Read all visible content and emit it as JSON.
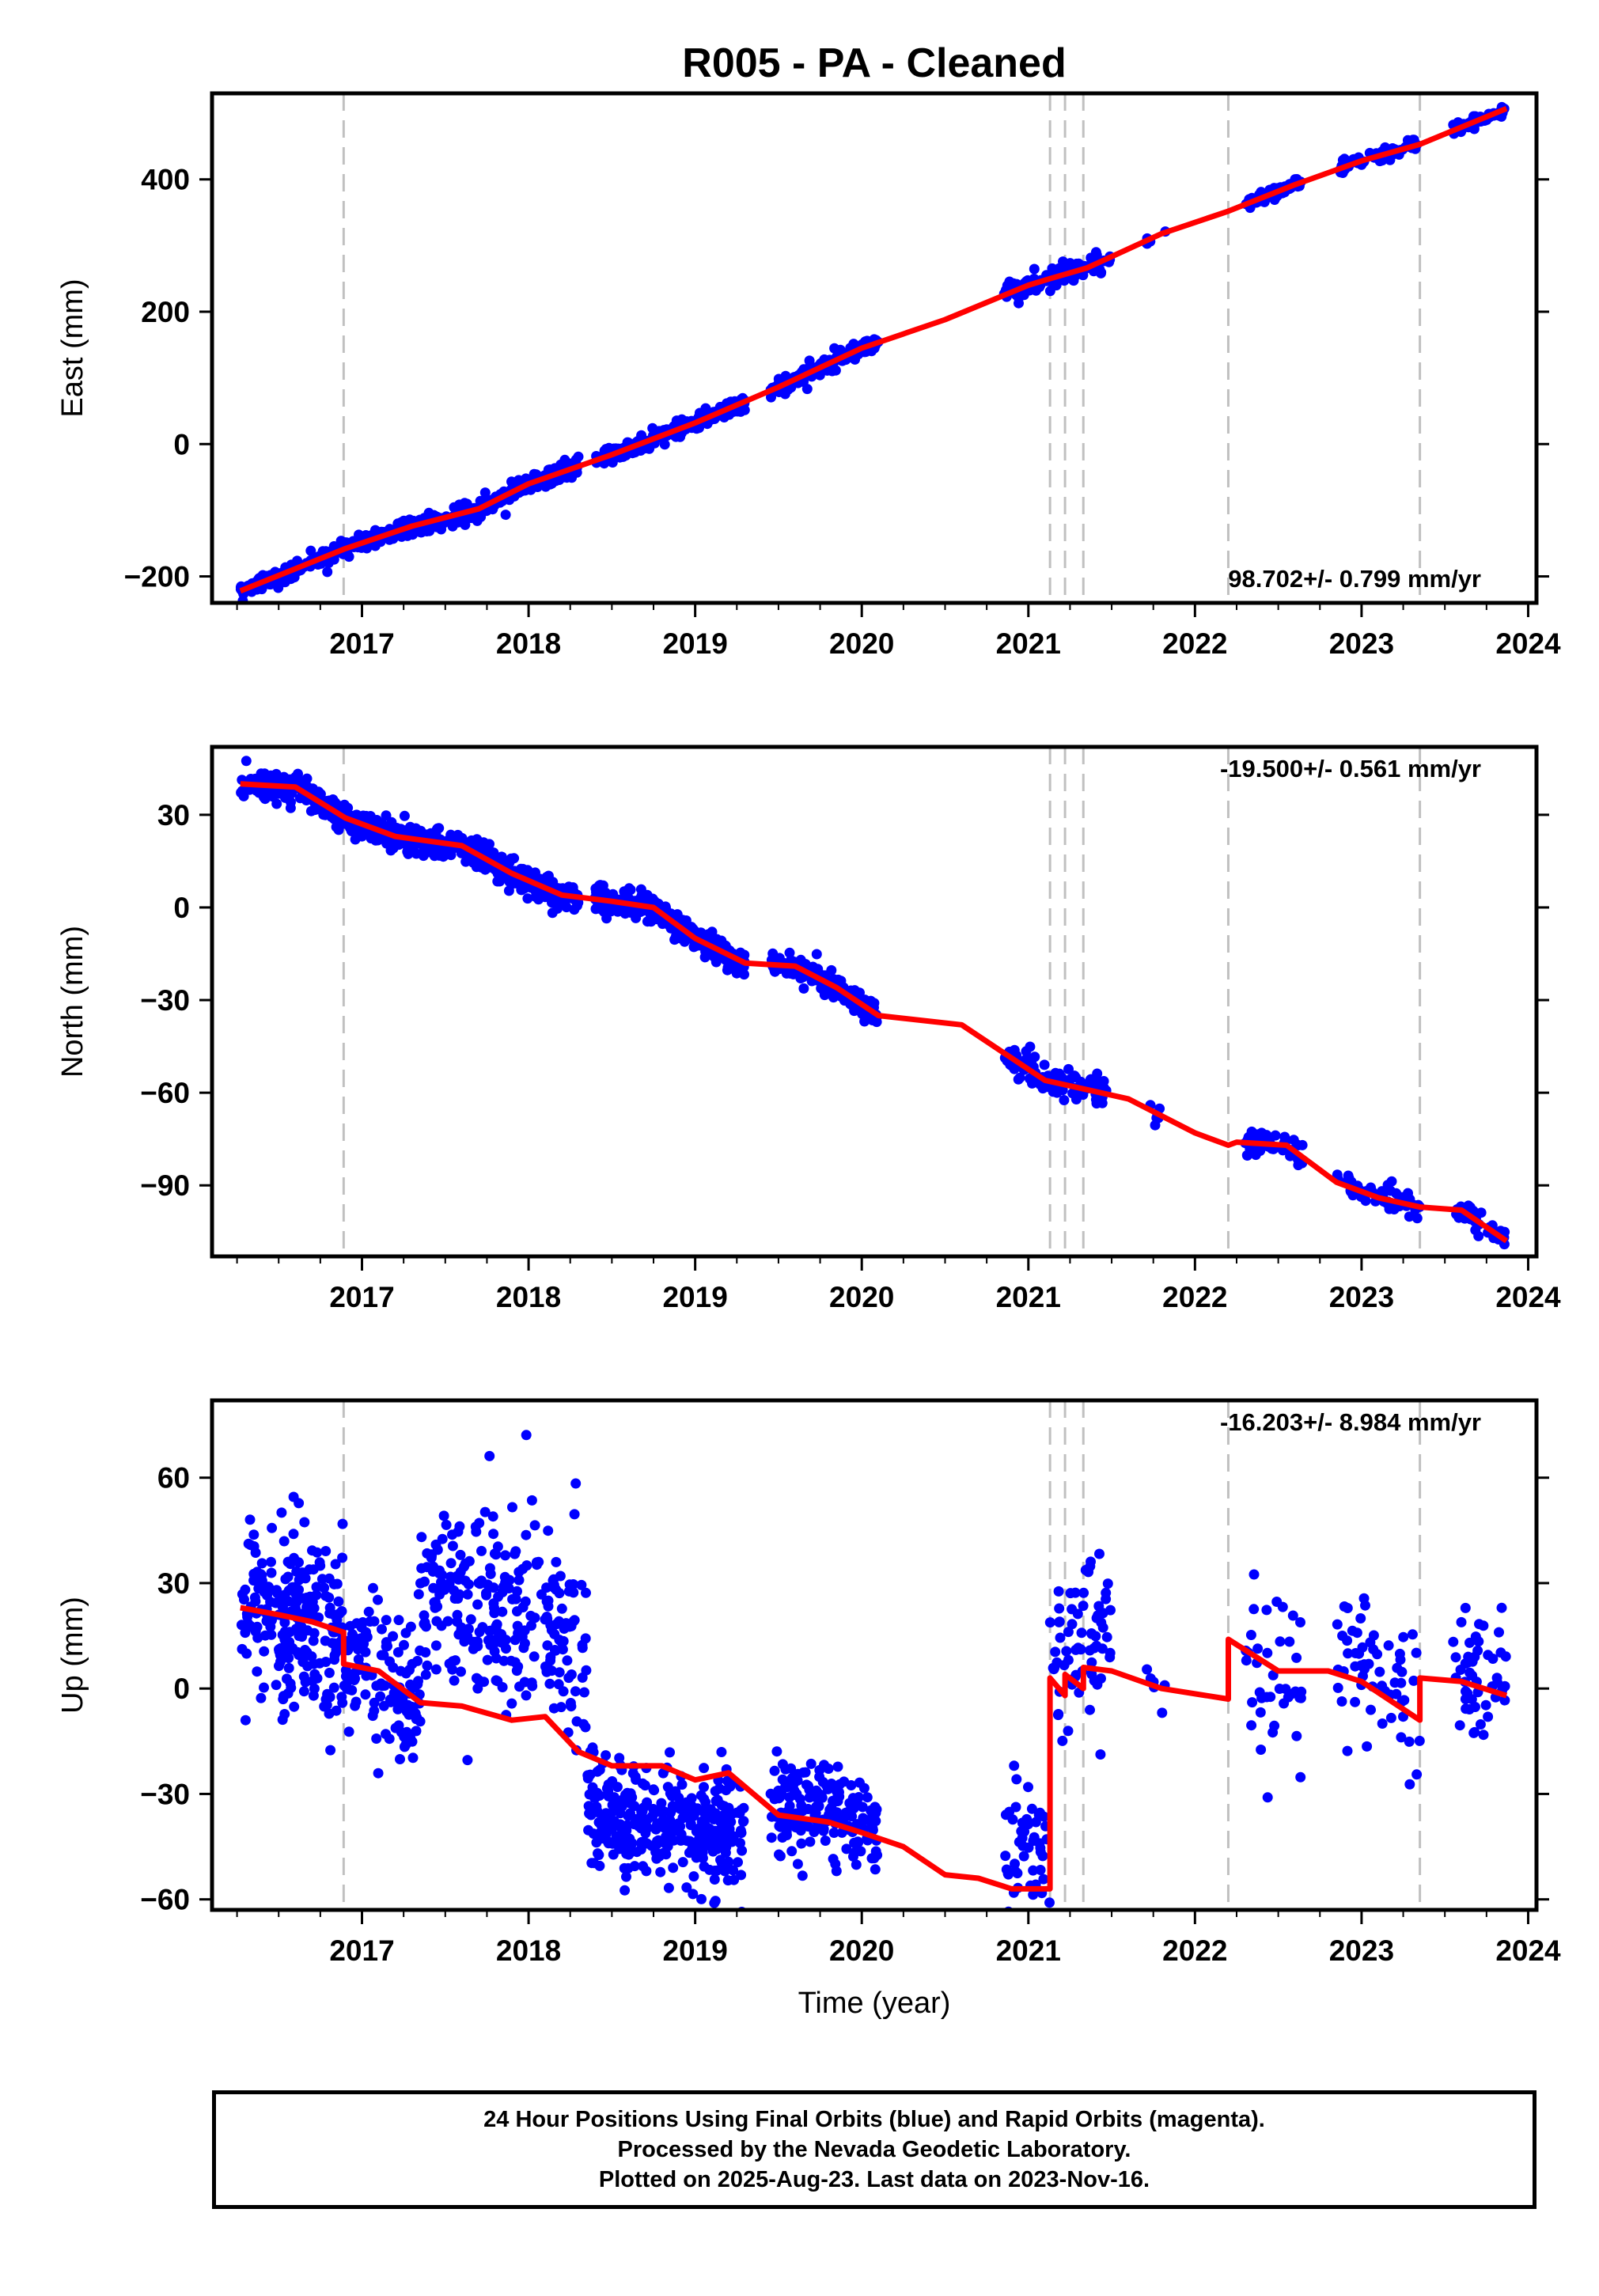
{
  "title": "R005  - PA - Cleaned",
  "footer": {
    "line1": "24 Hour Positions Using Final Orbits (blue) and Rapid Orbits (magenta).",
    "line2": "Processed by the Nevada Geodetic Laboratory.",
    "line3": "Plotted on 2025-Aug-23. Last data on 2023-Nov-16."
  },
  "colors": {
    "final_points": "#0000ff",
    "model_fit": "#ff0000",
    "event_lines": "#c0c0c0",
    "frame": "#000000"
  },
  "chart_data": [
    {
      "type": "scatter",
      "component": "East",
      "ylabel": "East (mm)",
      "xlabel": "",
      "xlim": [
        2016.1,
        2024.05
      ],
      "ylim": [
        -240,
        530
      ],
      "yticks": [
        -200,
        0,
        200,
        400
      ],
      "xticks": [
        2017,
        2018,
        2019,
        2020,
        2021,
        2022,
        2023,
        2024
      ],
      "rate_label": "98.702+/- 0.799 mm/yr",
      "legend_position": "bottom-right",
      "event_lines": [
        2016.89,
        2021.13,
        2021.22,
        2021.33,
        2022.2,
        2023.35
      ],
      "model": {
        "x": [
          2016.27,
          2016.9,
          2017.3,
          2017.7,
          2018.0,
          2018.5,
          2019.0,
          2019.5,
          2020.0,
          2020.5,
          2021.0,
          2021.13,
          2021.35,
          2021.8,
          2022.2,
          2022.6,
          2023.0,
          2023.35,
          2023.87
        ],
        "y": [
          -222,
          -158,
          -124,
          -98,
          -60,
          -16,
          32,
          86,
          145,
          188,
          240,
          250,
          266,
          318,
          352,
          392,
          428,
          453,
          507
        ]
      },
      "segments": [
        {
          "start": 2016.27,
          "end": 2017.0,
          "n": 150,
          "scatter": 6
        },
        {
          "start": 2017.0,
          "end": 2018.3,
          "n": 300,
          "scatter": 7
        },
        {
          "start": 2018.4,
          "end": 2019.3,
          "n": 250,
          "scatter": 6
        },
        {
          "start": 2019.45,
          "end": 2020.1,
          "n": 150,
          "scatter": 6
        },
        {
          "start": 2020.85,
          "end": 2021.5,
          "n": 120,
          "scatter": 7
        },
        {
          "start": 2021.7,
          "end": 2021.85,
          "n": 6,
          "scatter": 4
        },
        {
          "start": 2022.3,
          "end": 2022.65,
          "n": 50,
          "scatter": 5
        },
        {
          "start": 2022.85,
          "end": 2023.35,
          "n": 50,
          "scatter": 5
        },
        {
          "start": 2023.55,
          "end": 2023.87,
          "n": 45,
          "scatter": 5
        }
      ]
    },
    {
      "type": "scatter",
      "component": "North",
      "ylabel": "North (mm)",
      "xlabel": "",
      "xlim": [
        2016.1,
        2024.05
      ],
      "ylim": [
        -113,
        52
      ],
      "yticks": [
        -90,
        -60,
        -30,
        0,
        30
      ],
      "xticks": [
        2017,
        2018,
        2019,
        2020,
        2021,
        2022,
        2023,
        2024
      ],
      "rate_label": "-19.500+/- 0.561 mm/yr",
      "legend_position": "top-right",
      "event_lines": [
        2016.89,
        2021.13,
        2021.22,
        2021.33,
        2022.2,
        2023.35
      ],
      "model": {
        "x": [
          2016.27,
          2016.6,
          2016.9,
          2017.2,
          2017.6,
          2017.9,
          2018.2,
          2018.5,
          2018.75,
          2019.0,
          2019.3,
          2019.6,
          2019.85,
          2020.1,
          2020.6,
          2020.85,
          2021.1,
          2021.35,
          2021.6,
          2022.0,
          2022.2,
          2022.25,
          2022.55,
          2022.85,
          2023.1,
          2023.35,
          2023.6,
          2023.87
        ],
        "y": [
          40,
          39,
          29,
          23,
          20,
          11,
          4,
          2,
          0,
          -10,
          -18,
          -19,
          -26,
          -35,
          -38,
          -47,
          -56,
          -59,
          -62,
          -73,
          -77,
          -76,
          -77,
          -89,
          -94,
          -97,
          -98,
          -108
        ]
      },
      "segments": [
        {
          "start": 2016.27,
          "end": 2017.0,
          "n": 250,
          "scatter": 2.2
        },
        {
          "start": 2017.0,
          "end": 2018.3,
          "n": 400,
          "scatter": 2.2
        },
        {
          "start": 2018.4,
          "end": 2019.3,
          "n": 300,
          "scatter": 2.0
        },
        {
          "start": 2019.45,
          "end": 2020.1,
          "n": 150,
          "scatter": 2.0
        },
        {
          "start": 2020.85,
          "end": 2021.5,
          "n": 110,
          "scatter": 2.8
        },
        {
          "start": 2021.7,
          "end": 2021.85,
          "n": 6,
          "scatter": 2.0
        },
        {
          "start": 2022.3,
          "end": 2022.65,
          "n": 50,
          "scatter": 2.0
        },
        {
          "start": 2022.85,
          "end": 2023.35,
          "n": 50,
          "scatter": 2.2
        },
        {
          "start": 2023.55,
          "end": 2023.87,
          "n": 45,
          "scatter": 2.2
        }
      ]
    },
    {
      "type": "scatter",
      "component": "Up",
      "ylabel": "Up (mm)",
      "xlabel": "Time (year)",
      "xlim": [
        2016.1,
        2024.05
      ],
      "ylim": [
        -63,
        82
      ],
      "yticks": [
        -60,
        -30,
        0,
        30,
        60
      ],
      "xticks": [
        2017,
        2018,
        2019,
        2020,
        2021,
        2022,
        2023,
        2024
      ],
      "rate_label": "-16.203+/- 8.984 mm/yr",
      "legend_position": "top-right",
      "event_lines": [
        2016.89,
        2021.13,
        2021.22,
        2021.33,
        2022.2,
        2023.35
      ],
      "model": {
        "x": [
          2016.27,
          2016.5,
          2016.7,
          2016.89,
          2016.89,
          2017.1,
          2017.35,
          2017.6,
          2017.9,
          2018.1,
          2018.3,
          2018.5,
          2018.8,
          2019.0,
          2019.2,
          2019.5,
          2019.8,
          2020.0,
          2020.25,
          2020.5,
          2020.7,
          2020.9,
          2021.13,
          2021.13,
          2021.22,
          2021.22,
          2021.33,
          2021.33,
          2021.5,
          2021.8,
          2022.2,
          2022.2,
          2022.5,
          2022.8,
          2023.0,
          2023.35,
          2023.35,
          2023.6,
          2023.87
        ],
        "y": [
          23,
          21,
          19,
          16,
          7,
          5,
          -4,
          -5,
          -9,
          -8,
          -18,
          -22,
          -22,
          -26,
          -24,
          -36,
          -38,
          -41,
          -45,
          -53,
          -54,
          -57,
          -57,
          3,
          -2,
          4,
          0,
          6,
          5,
          0,
          -3,
          14,
          5,
          5,
          2,
          -9,
          3,
          2,
          -2
        ]
      },
      "segments": [
        {
          "start": 2016.27,
          "end": 2016.89,
          "n": 230,
          "scatter": 12,
          "offset": 0
        },
        {
          "start": 2016.89,
          "end": 2017.35,
          "n": 130,
          "scatter": 11,
          "offset": 0
        },
        {
          "start": 2017.35,
          "end": 2018.35,
          "n": 260,
          "scatter": 14,
          "offset": 30
        },
        {
          "start": 2018.35,
          "end": 2019.3,
          "n": 350,
          "scatter": 8,
          "offset": -16
        },
        {
          "start": 2019.45,
          "end": 2020.1,
          "n": 180,
          "scatter": 7,
          "offset": 3
        },
        {
          "start": 2020.85,
          "end": 2021.5,
          "n": 120,
          "scatter": 11,
          "offset": 10
        },
        {
          "start": 2021.7,
          "end": 2021.85,
          "n": 6,
          "scatter": 5,
          "offset": 4
        },
        {
          "start": 2022.3,
          "end": 2022.65,
          "n": 40,
          "scatter": 12,
          "offset": -6
        },
        {
          "start": 2022.85,
          "end": 2023.35,
          "n": 60,
          "scatter": 10,
          "offset": 4
        },
        {
          "start": 2023.55,
          "end": 2023.87,
          "n": 50,
          "scatter": 9,
          "offset": 3
        }
      ]
    }
  ]
}
